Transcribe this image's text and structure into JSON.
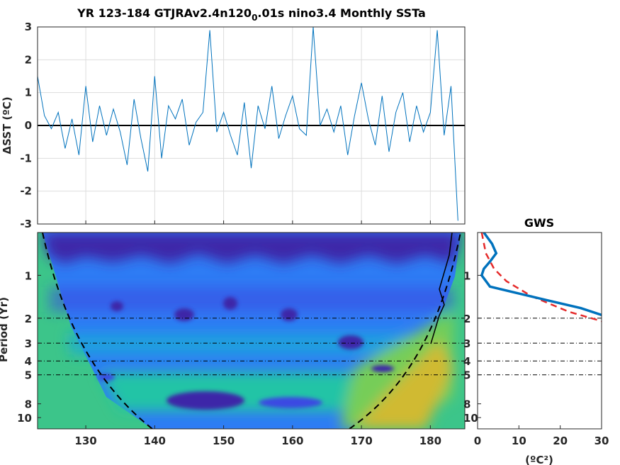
{
  "chart_data": [
    {
      "type": "line",
      "title": "YR 123-184 GTJRAv2.4n120",
      "title_sub": "0",
      "title_rest": ".01s nino3.4 Monthly SSTa",
      "ylabel": "ΔSST (ºC)",
      "xlabel": "",
      "xlim": [
        123,
        185
      ],
      "ylim": [
        -3,
        3
      ],
      "grid": true,
      "xticks": [
        130,
        140,
        150,
        160,
        170,
        180
      ],
      "yticks": [
        3,
        2,
        1,
        0,
        -1,
        -2,
        -3
      ],
      "zero_line": 0,
      "colors": {
        "series": "#0072BD",
        "zero": "#000000",
        "grid": "#dddddd"
      },
      "x": [
        123,
        124,
        125,
        126,
        127,
        128,
        129,
        130,
        131,
        132,
        133,
        134,
        135,
        136,
        137,
        138,
        139,
        140,
        141,
        142,
        143,
        144,
        145,
        146,
        147,
        148,
        149,
        150,
        151,
        152,
        153,
        154,
        155,
        156,
        157,
        158,
        159,
        160,
        161,
        162,
        163,
        164,
        165,
        166,
        167,
        168,
        169,
        170,
        171,
        172,
        173,
        174,
        175,
        176,
        177,
        178,
        179,
        180,
        181,
        182,
        183,
        184
      ],
      "values": [
        1.5,
        0.3,
        -0.1,
        0.4,
        -0.7,
        0.2,
        -0.9,
        1.2,
        -0.5,
        0.6,
        -0.3,
        0.5,
        -0.2,
        -1.2,
        0.8,
        -0.4,
        -1.4,
        1.5,
        -1.0,
        0.6,
        0.2,
        0.8,
        -0.6,
        0.1,
        0.4,
        2.9,
        -0.2,
        0.4,
        -0.3,
        -0.9,
        0.7,
        -1.3,
        0.6,
        -0.1,
        1.2,
        -0.4,
        0.3,
        0.9,
        -0.1,
        -0.3,
        3.0,
        0.0,
        0.5,
        -0.2,
        0.6,
        -0.9,
        0.3,
        1.3,
        0.2,
        -0.6,
        0.9,
        -0.8,
        0.4,
        1.0,
        -0.5,
        0.6,
        -0.2,
        0.4,
        2.9,
        -0.3,
        1.2,
        -2.9
      ]
    },
    {
      "type": "heatmap",
      "xlabel": "",
      "ylabel": "Period (Yr)",
      "xlim": [
        123,
        185
      ],
      "y_scale": "log2",
      "ylim": [
        0.5,
        12
      ],
      "xticks": [
        130,
        140,
        150,
        160,
        170,
        180
      ],
      "yticks": [
        1,
        2,
        3,
        4,
        5,
        8,
        10
      ],
      "reference_periods": [
        2,
        3,
        4,
        5
      ],
      "colormap": [
        "#3e26a8",
        "#3a49e2",
        "#2e7cf4",
        "#1ba9da",
        "#22c4a6",
        "#76cd59",
        "#d0ba31",
        "#f5d12a"
      ],
      "cone_fill": "#3cc58a",
      "high_power_band": {
        "period_range": [
          6,
          9
        ],
        "x_range": [
          127,
          172
        ]
      }
    },
    {
      "type": "line",
      "title": "GWS",
      "xlabel": "(ºC²)",
      "xlim": [
        0,
        30
      ],
      "xticks": [
        0,
        10,
        20,
        30
      ],
      "yticks": [
        1,
        2,
        3,
        4,
        5,
        8,
        10
      ],
      "y_scale": "log2",
      "series": [
        {
          "color": "#0072BD",
          "period": [
            0.5,
            0.6,
            0.7,
            0.8,
            0.9,
            1.0,
            1.2,
            1.3,
            1.5,
            1.7,
            1.9
          ],
          "values": [
            1.5,
            3.5,
            4.5,
            3.0,
            1.5,
            1.0,
            3.0,
            8.0,
            17.0,
            25.0,
            30.0
          ]
        },
        {
          "color": "#e52a2a",
          "dashed": true,
          "period": [
            0.5,
            0.7,
            0.9,
            1.1,
            1.4,
            1.8,
            2.1
          ],
          "values": [
            1.0,
            2.0,
            4.0,
            7.0,
            13.0,
            22.0,
            30.0
          ]
        }
      ]
    }
  ]
}
